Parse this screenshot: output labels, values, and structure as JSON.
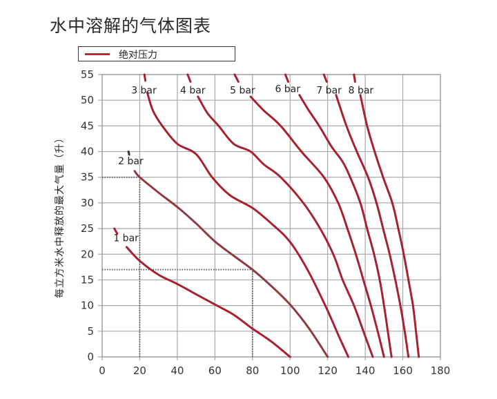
{
  "chart_data": {
    "type": "line",
    "title": "水中溶解的气体图表",
    "xlabel": "",
    "ylabel": "每立方米水中释放的最大气量（升）",
    "xlim": [
      0,
      180
    ],
    "ylim": [
      0,
      55
    ],
    "x_ticks": [
      0,
      20,
      40,
      60,
      80,
      100,
      120,
      140,
      160,
      180
    ],
    "y_ticks": [
      0,
      5,
      10,
      15,
      20,
      25,
      30,
      35,
      40,
      45,
      50,
      55
    ],
    "grid": true,
    "legend": {
      "position": "top-left",
      "entries": [
        "绝对压力"
      ]
    },
    "series": [
      {
        "name": "1 bar",
        "label_pos": [
          6,
          22.5
        ],
        "start_stub": [
          [
            6.5,
            25
          ],
          [
            8,
            24
          ]
        ],
        "points": [
          [
            13,
            21.4
          ],
          [
            20,
            18.7
          ],
          [
            30,
            16
          ],
          [
            40,
            14.2
          ],
          [
            50,
            12.2
          ],
          [
            60,
            10.2
          ],
          [
            70,
            8.2
          ],
          [
            80,
            5.5
          ],
          [
            90,
            3
          ],
          [
            100,
            0
          ]
        ]
      },
      {
        "name": "2 bar",
        "label_pos": [
          8.5,
          37.5
        ],
        "start_stub": [
          [
            14,
            40
          ],
          [
            14.4,
            39.4
          ]
        ],
        "points": [
          [
            17.3,
            36.2
          ],
          [
            20,
            35
          ],
          [
            30,
            32
          ],
          [
            40,
            29.2
          ],
          [
            50,
            26
          ],
          [
            60,
            22.5
          ],
          [
            70,
            19.7
          ],
          [
            80,
            17
          ],
          [
            90,
            13.8
          ],
          [
            100,
            10.2
          ],
          [
            110,
            5.6
          ],
          [
            120,
            0
          ]
        ]
      },
      {
        "name": "3 bar",
        "label_pos": [
          15.5,
          51.3
        ],
        "start_stub": [
          [
            22.5,
            55
          ],
          [
            23,
            53.8
          ]
        ],
        "points": [
          [
            24,
            51.5
          ],
          [
            27,
            48
          ],
          [
            32,
            45
          ],
          [
            40,
            41.5
          ],
          [
            50,
            39.5
          ],
          [
            58.5,
            35
          ],
          [
            68,
            31.5
          ],
          [
            80,
            29
          ],
          [
            90,
            26
          ],
          [
            100,
            22.4
          ],
          [
            110,
            16.5
          ],
          [
            120,
            9
          ],
          [
            126,
            4
          ],
          [
            131,
            0
          ]
        ]
      },
      {
        "name": "4 bar",
        "label_pos": [
          41.5,
          51.3
        ],
        "start_stub": [
          [
            45.5,
            55
          ],
          [
            47,
            53.6
          ]
        ],
        "points": [
          [
            51,
            50.7
          ],
          [
            56,
            47.5
          ],
          [
            62,
            45
          ],
          [
            70,
            41.5
          ],
          [
            79,
            40
          ],
          [
            86,
            37.5
          ],
          [
            95,
            35
          ],
          [
            107,
            30
          ],
          [
            116,
            25
          ],
          [
            123,
            20
          ],
          [
            128,
            15
          ],
          [
            134,
            10
          ],
          [
            139,
            5
          ],
          [
            144,
            0
          ]
        ]
      },
      {
        "name": "5 bar",
        "label_pos": [
          68,
          51.3
        ],
        "start_stub": [
          [
            70.5,
            55
          ],
          [
            72.5,
            53.6
          ]
        ],
        "points": [
          [
            79,
            50.7
          ],
          [
            86,
            48
          ],
          [
            95,
            45
          ],
          [
            106,
            40
          ],
          [
            118,
            35
          ],
          [
            125.6,
            30
          ],
          [
            130.5,
            25
          ],
          [
            135,
            20
          ],
          [
            139,
            15
          ],
          [
            143,
            10
          ],
          [
            146.6,
            5
          ],
          [
            150,
            0
          ]
        ]
      },
      {
        "name": "6 bar",
        "label_pos": [
          92,
          51.6
        ],
        "start_stub": [
          [
            97.5,
            55
          ],
          [
            99,
            53.6
          ]
        ],
        "points": [
          [
            105,
            51
          ],
          [
            110,
            48
          ],
          [
            115.5,
            45
          ],
          [
            122,
            41
          ],
          [
            128,
            38
          ],
          [
            132,
            35
          ],
          [
            137.4,
            30
          ],
          [
            141,
            25
          ],
          [
            144.7,
            20
          ],
          [
            147.7,
            15
          ],
          [
            150,
            10
          ],
          [
            152,
            5
          ],
          [
            154,
            0
          ]
        ]
      },
      {
        "name": "7 bar",
        "label_pos": [
          114,
          51.3
        ],
        "start_stub": [
          [
            118,
            55
          ],
          [
            119.5,
            53.6
          ]
        ],
        "points": [
          [
            124.5,
            51
          ],
          [
            130,
            45
          ],
          [
            135.5,
            40
          ],
          [
            141.5,
            35
          ],
          [
            146,
            30
          ],
          [
            149.5,
            25
          ],
          [
            153,
            20
          ],
          [
            156,
            15
          ],
          [
            158.7,
            10
          ],
          [
            161,
            5
          ],
          [
            163,
            0
          ]
        ]
      },
      {
        "name": "8 bar",
        "label_pos": [
          131,
          51.3
        ],
        "start_stub": [
          [
            134,
            55
          ],
          [
            134.6,
            53.6
          ]
        ],
        "points": [
          [
            137.4,
            51
          ],
          [
            141,
            45
          ],
          [
            145,
            40
          ],
          [
            149.5,
            35
          ],
          [
            154.4,
            30
          ],
          [
            157.6,
            25
          ],
          [
            160.5,
            20
          ],
          [
            163,
            15
          ],
          [
            165.4,
            10
          ],
          [
            167,
            5
          ],
          [
            168.5,
            0
          ]
        ]
      }
    ],
    "reference_lines": [
      {
        "type": "horizontal",
        "y": 35,
        "x_from": 0,
        "x_to": 20
      },
      {
        "type": "vertical",
        "x": 20,
        "y_from": 0,
        "y_to": 35
      },
      {
        "type": "horizontal",
        "y": 17,
        "x_from": 0,
        "x_to": 80
      },
      {
        "type": "vertical",
        "x": 80,
        "y_from": 0,
        "y_to": 17
      }
    ]
  },
  "header": {
    "title": "水中溶解的气体图表"
  },
  "legend": {
    "label": "绝对压力"
  },
  "axes": {
    "ylabel": "每立方米水中释放的最大气量（升）"
  },
  "colors": {
    "curve": "#a8202e",
    "curve_2bar": "#8c3a3e",
    "grid": "#a8a8a8",
    "frame": "#999999",
    "dotted": "#555555",
    "legend_swatch": "#b0303a"
  }
}
